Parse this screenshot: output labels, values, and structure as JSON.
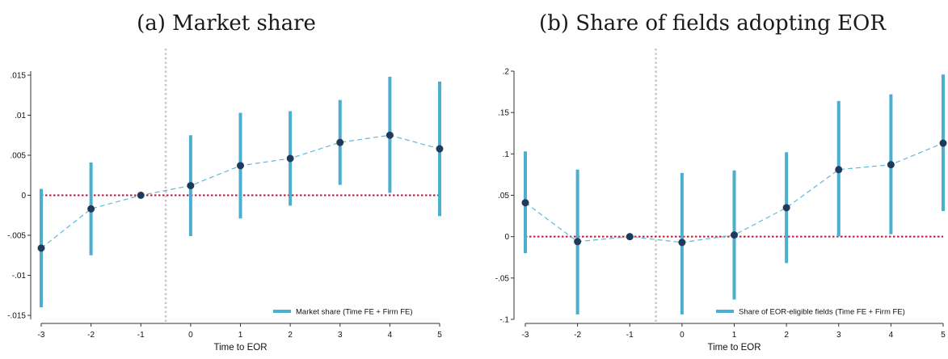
{
  "chart_data": [
    {
      "type": "scatter",
      "title": "(a) Market share",
      "xlabel": "Time to EOR",
      "ylabel": "",
      "x": [
        -3,
        -2,
        -1,
        0,
        1,
        2,
        3,
        4,
        5
      ],
      "xticks": [
        "-3",
        "-2",
        "-1",
        "0",
        "1",
        "2",
        "3",
        "4",
        "5"
      ],
      "xlim": [
        -3,
        5
      ],
      "ylim": [
        -0.0155,
        0.0155
      ],
      "yticks": [
        {
          "value": 0.015,
          "label": ".015"
        },
        {
          "value": 0.01,
          "label": ".01"
        },
        {
          "value": 0.005,
          "label": ".005"
        },
        {
          "value": 0,
          "label": "0"
        },
        {
          "value": -0.005,
          "label": "-.005"
        },
        {
          "value": -0.01,
          "label": "-.01"
        },
        {
          "value": -0.015,
          "label": "-.015"
        }
      ],
      "series": [
        {
          "name": "Market share (Time FE + Firm FE)",
          "estimates": [
            -0.0066,
            -0.0017,
            0.0,
            0.0012,
            0.0037,
            0.0046,
            0.0066,
            0.0075,
            0.0058
          ],
          "ci_low": [
            -0.014,
            -0.0075,
            0.0,
            -0.0051,
            -0.0029,
            -0.0013,
            0.0013,
            0.0003,
            -0.0026
          ],
          "ci_high": [
            0.0008,
            0.0041,
            0.0,
            0.0075,
            0.0103,
            0.0105,
            0.0119,
            0.0148,
            0.0142
          ]
        }
      ],
      "reference_line_y": 0,
      "event_line_x": -0.5,
      "legend_position": "bottom-right",
      "grid": false
    },
    {
      "type": "scatter",
      "title": "(b) Share of fields adopting EOR",
      "xlabel": "Time to EOR",
      "ylabel": "",
      "x": [
        -3,
        -2,
        -1,
        0,
        1,
        2,
        3,
        4,
        5
      ],
      "xticks": [
        "-3",
        "-2",
        "-1",
        "0",
        "1",
        "2",
        "3",
        "4",
        "5"
      ],
      "xlim": [
        -3,
        5
      ],
      "ylim": [
        -0.1,
        0.2
      ],
      "yticks": [
        {
          "value": 0.2,
          "label": ".2"
        },
        {
          "value": 0.15,
          "label": ".15"
        },
        {
          "value": 0.1,
          "label": ".1"
        },
        {
          "value": 0.05,
          "label": ".05"
        },
        {
          "value": 0,
          "label": "0"
        },
        {
          "value": -0.05,
          "label": "-.05"
        },
        {
          "value": -0.1,
          "label": "-.1"
        }
      ],
      "series": [
        {
          "name": "Share of EOR-eligible fields (Time FE + Firm FE)",
          "estimates": [
            0.041,
            -0.006,
            0.0,
            -0.007,
            0.002,
            0.035,
            0.081,
            0.087,
            0.113
          ],
          "ci_low": [
            -0.02,
            -0.094,
            0.0,
            -0.094,
            -0.076,
            -0.032,
            0.0,
            0.003,
            0.031
          ],
          "ci_high": [
            0.103,
            0.081,
            0.0,
            0.077,
            0.08,
            0.102,
            0.164,
            0.172,
            0.196
          ]
        }
      ],
      "reference_line_y": 0,
      "event_line_x": -0.5,
      "legend_position": "bottom-right",
      "grid": false
    }
  ],
  "colors": {
    "ci_bar": "#4bafd0",
    "point": "#1f3a5a",
    "connect_line": "#5fb9d8",
    "zero_line": "#c0143c",
    "event_line": "#c8c8c8"
  }
}
